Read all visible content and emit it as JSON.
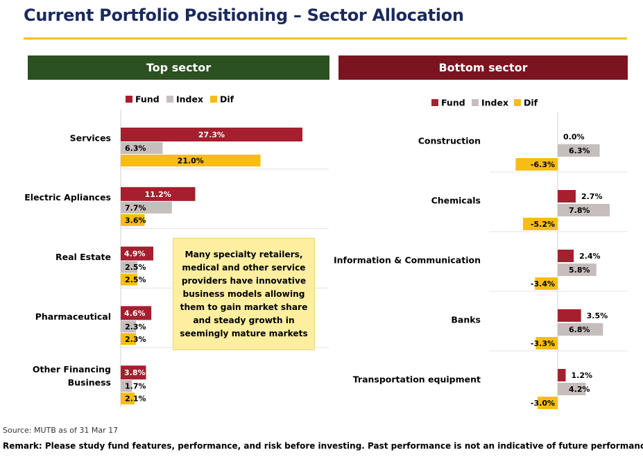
{
  "title": "Current Portfolio Positioning – Sector Allocation",
  "header_left": "Top sector",
  "header_right": "Bottom sector",
  "callout_text": "Many specialty retailers, medical and other service providers have innovative business models allowing them to gain market share and steady growth in seemingly mature markets",
  "source": "Source: MUTB as of 31 Mar 17",
  "remark": "Remark: Please study fund features, performance, and risk before investing. Past performance is not an indicative of future performance.",
  "colors": {
    "fund": "#a51f2f",
    "index": "#c6bdbd",
    "dif": "#f7bd12",
    "title": "#1a2a5e",
    "header_left": "#2b5121",
    "header_right": "#7a1520",
    "rule": "#f0c020"
  },
  "chart_data": [
    {
      "type": "bar",
      "orientation": "horizontal",
      "title": "Top sector",
      "categories": [
        [
          "Services"
        ],
        [
          "Electric Apliances"
        ],
        [
          "Real Estate"
        ],
        [
          "Pharmaceutical"
        ],
        [
          "Other Financing",
          "Business"
        ]
      ],
      "series": [
        {
          "name": "Fund",
          "values": [
            27.3,
            11.2,
            4.9,
            4.6,
            3.8
          ]
        },
        {
          "name": "Index",
          "values": [
            6.3,
            7.7,
            2.5,
            2.3,
            1.7
          ]
        },
        {
          "name": "Dif",
          "values": [
            21.0,
            3.6,
            2.5,
            2.3,
            2.1
          ]
        }
      ],
      "value_labels": [
        [
          "27.3%",
          "11.2%",
          "4.9%",
          "4.6%",
          "3.8%"
        ],
        [
          "6.3%",
          "7.7%",
          "2.5%",
          "2.3%",
          "1.7%"
        ],
        [
          "21.0%",
          "3.6%",
          "2.5%",
          "2.3%",
          "2.1%"
        ]
      ],
      "xlim": [
        0,
        28
      ],
      "legend": "top",
      "grid": false
    },
    {
      "type": "bar",
      "orientation": "horizontal",
      "title": "Bottom sector",
      "categories": [
        [
          "Construction"
        ],
        [
          "Chemicals"
        ],
        [
          "Information & Communication"
        ],
        [
          "Banks"
        ],
        [
          "Transportation equipment"
        ]
      ],
      "series": [
        {
          "name": "Fund",
          "values": [
            0.0,
            2.7,
            2.4,
            3.5,
            1.2
          ]
        },
        {
          "name": "Index",
          "values": [
            6.3,
            7.8,
            5.8,
            6.8,
            4.2
          ]
        },
        {
          "name": "Dif",
          "values": [
            -6.3,
            -5.2,
            -3.4,
            -3.3,
            -3.0
          ]
        }
      ],
      "value_labels": [
        [
          "0.0%",
          "2.7%",
          "2.4%",
          "3.5%",
          "1.2%"
        ],
        [
          "6.3%",
          "7.8%",
          "5.8%",
          "6.8%",
          "4.2%"
        ],
        [
          "-6.3%",
          "-5.2%",
          "-3.4%",
          "-3.3%",
          "-3.0%"
        ]
      ],
      "xlim": [
        -7,
        9
      ],
      "legend": "top",
      "grid": false
    }
  ]
}
